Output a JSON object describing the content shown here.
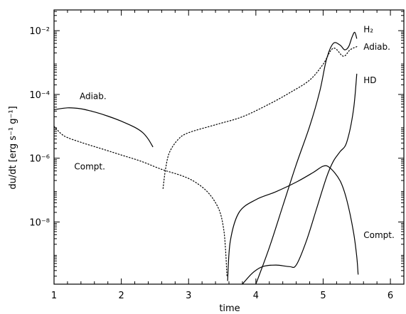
{
  "chart_data": {
    "type": "line",
    "xlabel": "time",
    "ylabel": "du/dt [erg s⁻¹ g⁻¹]",
    "xlim": [
      1,
      6.2
    ],
    "ylim_log10": [
      -9.95,
      -1.35
    ],
    "yscale": "log",
    "grid": false,
    "xticks": [
      "1",
      "2",
      "3",
      "4",
      "5",
      "6"
    ],
    "yticks": [
      "10⁻²",
      "10⁻⁴",
      "10⁻⁶",
      "10⁻⁸"
    ],
    "yticks_values_log10": [
      -2,
      -4,
      -6,
      -8
    ],
    "series": [
      {
        "name": "Adiab.",
        "style": "solid",
        "points": [
          [
            1.0,
            -4.48
          ],
          [
            1.2,
            -4.42
          ],
          [
            1.4,
            -4.45
          ],
          [
            1.6,
            -4.55
          ],
          [
            1.8,
            -4.68
          ],
          [
            2.0,
            -4.84
          ],
          [
            2.2,
            -5.03
          ],
          [
            2.32,
            -5.2
          ],
          [
            2.4,
            -5.4
          ],
          [
            2.47,
            -5.65
          ]
        ]
      },
      {
        "name": "Compt.",
        "style": "dotted",
        "points": [
          [
            1.0,
            -5.0
          ],
          [
            1.15,
            -5.3
          ],
          [
            1.4,
            -5.5
          ],
          [
            1.7,
            -5.7
          ],
          [
            2.0,
            -5.9
          ],
          [
            2.3,
            -6.1
          ],
          [
            2.6,
            -6.35
          ],
          [
            2.9,
            -6.55
          ],
          [
            3.1,
            -6.75
          ],
          [
            3.3,
            -7.1
          ],
          [
            3.45,
            -7.6
          ],
          [
            3.52,
            -8.2
          ],
          [
            3.55,
            -8.9
          ],
          [
            3.57,
            -9.7
          ]
        ]
      },
      {
        "name": "Adiab.",
        "style": "dotted",
        "points": [
          [
            2.62,
            -6.95
          ],
          [
            2.66,
            -6.3
          ],
          [
            2.72,
            -5.8
          ],
          [
            2.85,
            -5.4
          ],
          [
            3.0,
            -5.2
          ],
          [
            3.4,
            -4.95
          ],
          [
            3.8,
            -4.7
          ],
          [
            4.2,
            -4.3
          ],
          [
            4.5,
            -3.95
          ],
          [
            4.8,
            -3.55
          ],
          [
            5.0,
            -3.05
          ],
          [
            5.15,
            -2.55
          ],
          [
            5.3,
            -2.8
          ],
          [
            5.4,
            -2.6
          ],
          [
            5.5,
            -2.5
          ]
        ]
      },
      {
        "name": "H₂",
        "style": "solid",
        "points": [
          [
            4.0,
            -9.95
          ],
          [
            4.2,
            -8.8
          ],
          [
            4.4,
            -7.5
          ],
          [
            4.6,
            -6.2
          ],
          [
            4.8,
            -5.0
          ],
          [
            4.95,
            -3.9
          ],
          [
            5.05,
            -2.9
          ],
          [
            5.15,
            -2.4
          ],
          [
            5.25,
            -2.45
          ],
          [
            5.32,
            -2.6
          ],
          [
            5.38,
            -2.5
          ],
          [
            5.43,
            -2.2
          ],
          [
            5.47,
            -2.05
          ],
          [
            5.5,
            -2.25
          ]
        ]
      },
      {
        "name": "HD",
        "style": "solid",
        "points": [
          [
            3.8,
            -9.95
          ],
          [
            3.95,
            -9.6
          ],
          [
            4.1,
            -9.4
          ],
          [
            4.3,
            -9.35
          ],
          [
            4.5,
            -9.4
          ],
          [
            4.6,
            -9.35
          ],
          [
            4.75,
            -8.6
          ],
          [
            4.9,
            -7.6
          ],
          [
            5.05,
            -6.6
          ],
          [
            5.15,
            -6.1
          ],
          [
            5.25,
            -5.8
          ],
          [
            5.35,
            -5.5
          ],
          [
            5.45,
            -4.5
          ],
          [
            5.5,
            -3.35
          ]
        ]
      },
      {
        "name": "Compt.",
        "style": "solid",
        "points": [
          [
            3.58,
            -9.85
          ],
          [
            3.62,
            -8.6
          ],
          [
            3.75,
            -7.7
          ],
          [
            4.0,
            -7.3
          ],
          [
            4.3,
            -7.05
          ],
          [
            4.6,
            -6.75
          ],
          [
            4.85,
            -6.45
          ],
          [
            5.0,
            -6.25
          ],
          [
            5.1,
            -6.3
          ],
          [
            5.25,
            -6.7
          ],
          [
            5.35,
            -7.3
          ],
          [
            5.45,
            -8.3
          ],
          [
            5.5,
            -9.1
          ],
          [
            5.52,
            -9.65
          ]
        ]
      }
    ],
    "annotations": [
      {
        "text": "Adiab.",
        "x": 1.38,
        "y": -4.15
      },
      {
        "text": "Compt.",
        "x": 1.3,
        "y": -6.35
      },
      {
        "text": "H₂",
        "x": 5.6,
        "y": -2.05
      },
      {
        "text": "Adiab.",
        "x": 5.6,
        "y": -2.6
      },
      {
        "text": "HD",
        "x": 5.6,
        "y": -3.65
      },
      {
        "text": "Compt.",
        "x": 5.6,
        "y": -8.5
      }
    ]
  }
}
